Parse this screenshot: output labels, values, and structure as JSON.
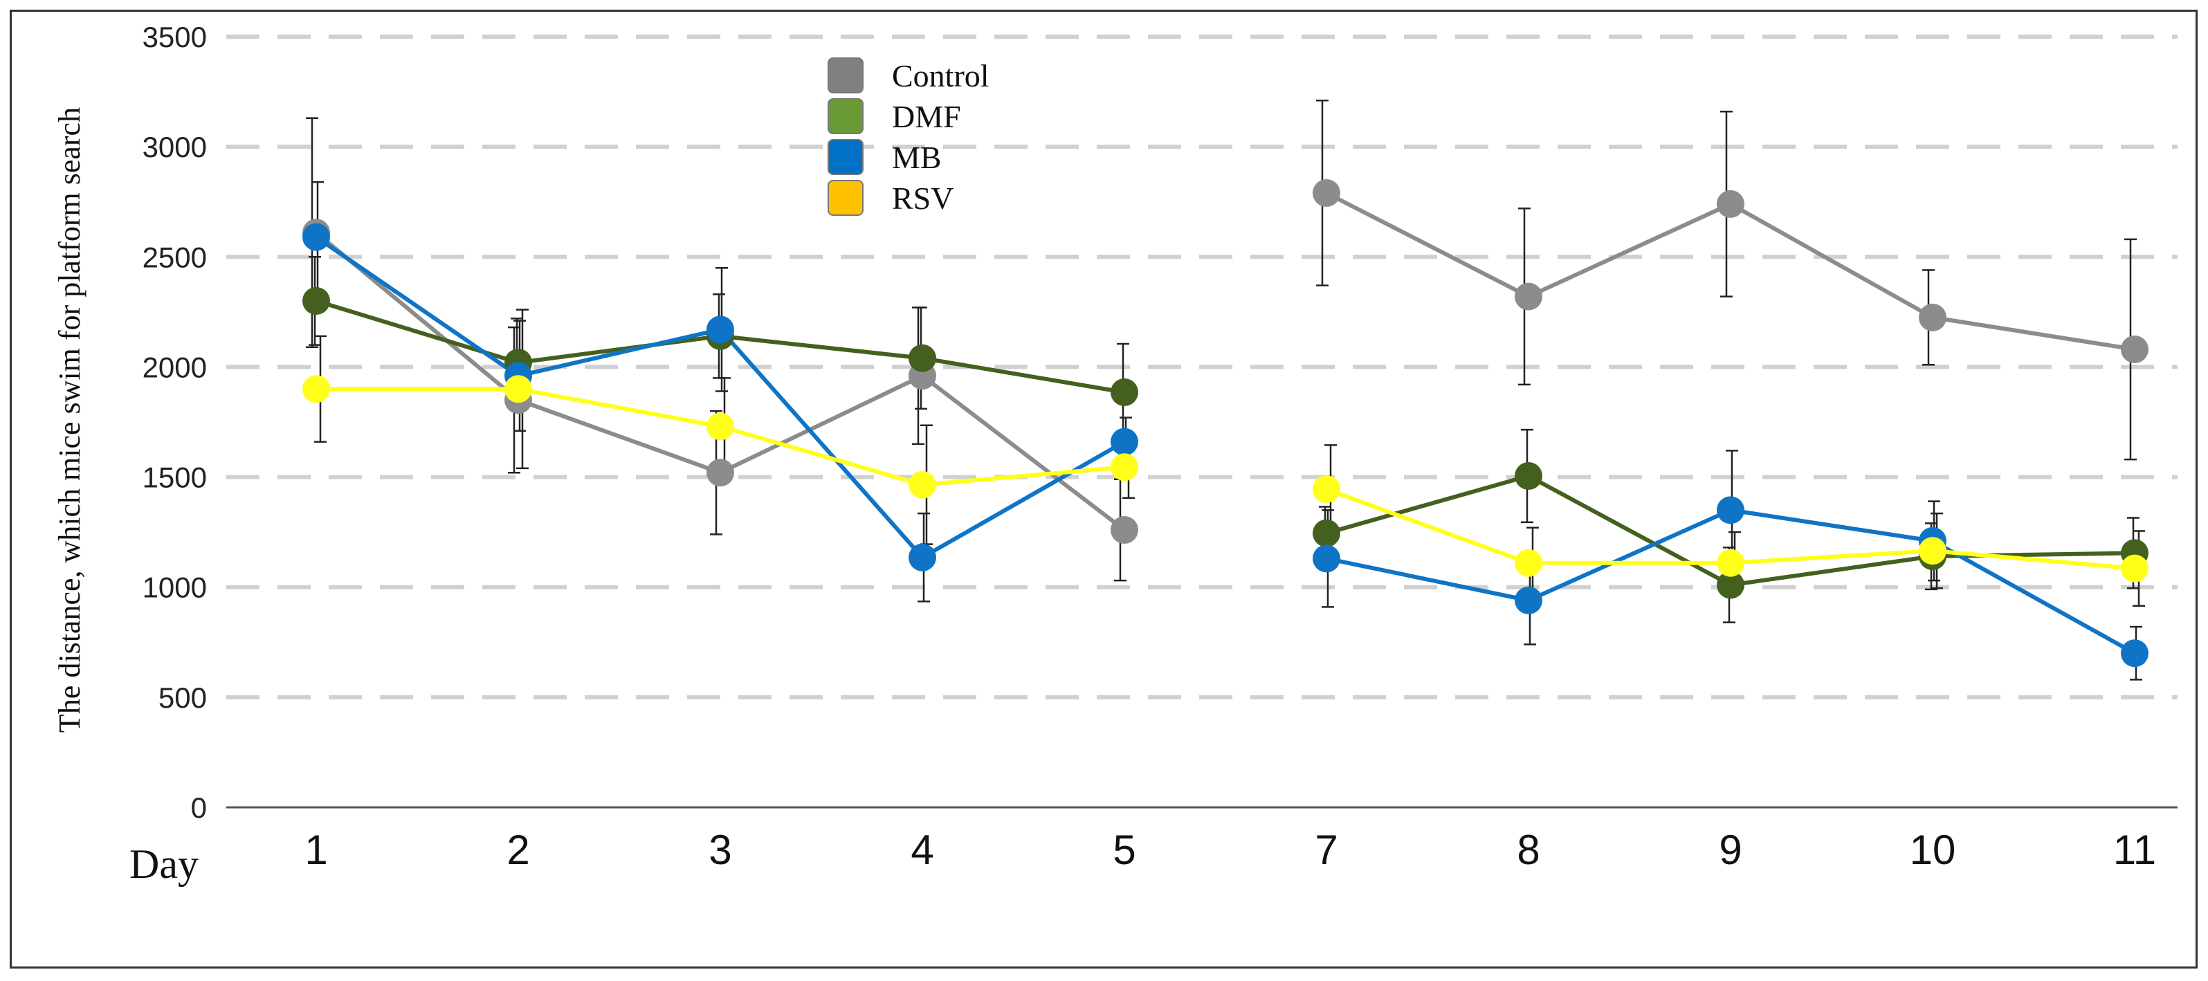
{
  "chart_data": {
    "type": "line",
    "ylabel": "The distance, which mice swim for platform search",
    "xlabel": "Day",
    "categories": [
      "1",
      "2",
      "3",
      "4",
      "5",
      "7",
      "8",
      "9",
      "10",
      "11"
    ],
    "segments": [
      [
        0,
        4
      ],
      [
        5,
        9
      ]
    ],
    "ylim": [
      0,
      3500
    ],
    "yticks": [
      "0",
      "500",
      "1000",
      "1500",
      "2000",
      "2500",
      "3000",
      "3500"
    ],
    "grid": true,
    "legend_position": "top-center",
    "series": [
      {
        "name": "Control",
        "legend_color": "#808080",
        "line_color": "#8c8c8c",
        "values": [
          2610,
          1850,
          1520,
          1960,
          1260,
          2790,
          2320,
          2740,
          2225,
          2080
        ],
        "errors": [
          520,
          330,
          280,
          310,
          230,
          420,
          400,
          420,
          215,
          500
        ]
      },
      {
        "name": "DMF",
        "legend_color": "#6a9a35",
        "line_color": "#44601f",
        "values": [
          2300,
          2020,
          2140,
          2040,
          1885,
          1245,
          1505,
          1010,
          1140,
          1155
        ],
        "errors": [
          200,
          200,
          190,
          230,
          220,
          120,
          210,
          170,
          150,
          160
        ]
      },
      {
        "name": "MB",
        "legend_color": "#0071c5",
        "line_color": "#0f74c6",
        "values": [
          2590,
          1960,
          2170,
          1135,
          1660,
          1130,
          940,
          1350,
          1210,
          700
        ],
        "errors": [
          250,
          250,
          280,
          200,
          110,
          220,
          200,
          270,
          180,
          120
        ]
      },
      {
        "name": "RSV",
        "legend_color": "#ffc000",
        "line_color": "#ffff1a",
        "values": [
          1900,
          1900,
          1730,
          1465,
          1545,
          1445,
          1110,
          1110,
          1165,
          1085
        ],
        "errors": [
          240,
          360,
          220,
          270,
          140,
          200,
          160,
          140,
          170,
          170
        ]
      }
    ]
  }
}
